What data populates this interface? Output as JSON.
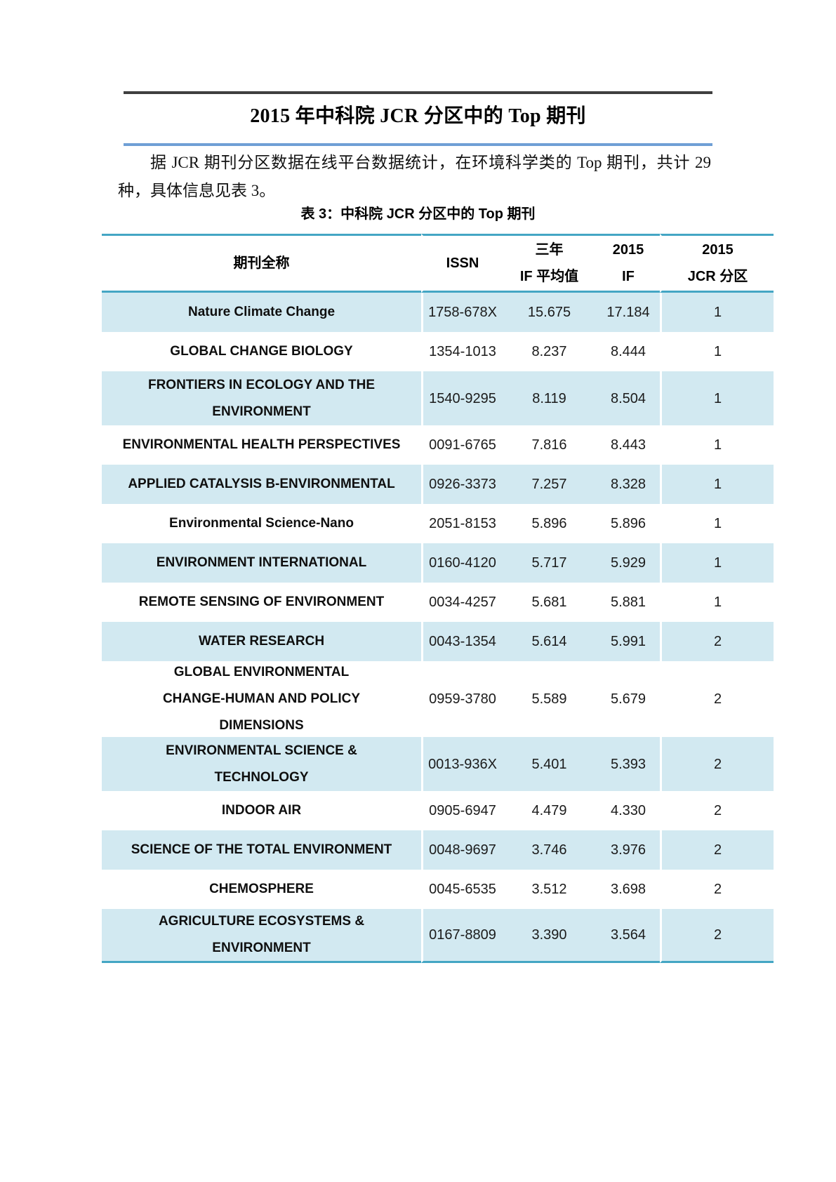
{
  "doc": {
    "title": "2015 年中科院 JCR 分区中的 Top 期刊",
    "paragraph_lines": [
      "据 JCR 期刊分区数据在线平台数据统计，在环境科学类的 Top 期刊，共计 29",
      "种，具体信息见表 3。"
    ],
    "table_caption": "表 3：中科院 JCR 分区中的 Top 期刊"
  },
  "colors": {
    "table_rule": "#44a6c4",
    "row_fill": "#d2e9f1",
    "title_rule_top": "#3f3f3f",
    "title_rule_bottom": "#6f9fd5"
  },
  "table": {
    "header": {
      "journal": "期刊全称",
      "issn": "ISSN",
      "if3_line1": "三年",
      "if3_line2": "IF 平均值",
      "if2015_line1": "2015",
      "if2015_line2": "IF",
      "zone_line1": "2015",
      "zone_line2": "JCR 分区"
    },
    "rows": [
      {
        "name_lines": [
          "Nature Climate Change"
        ],
        "issn": "1758-678X",
        "if3_avg": "15.675",
        "if_2015": "17.184",
        "jcr_zone": "1",
        "shaded": true
      },
      {
        "name_lines": [
          "GLOBAL CHANGE BIOLOGY"
        ],
        "issn": "1354-1013",
        "if3_avg": "8.237",
        "if_2015": "8.444",
        "jcr_zone": "1",
        "shaded": false
      },
      {
        "name_lines": [
          "FRONTIERS IN ECOLOGY AND THE",
          "ENVIRONMENT"
        ],
        "issn": "1540-9295",
        "if3_avg": "8.119",
        "if_2015": "8.504",
        "jcr_zone": "1",
        "shaded": true
      },
      {
        "name_lines": [
          "ENVIRONMENTAL HEALTH PERSPECTIVES"
        ],
        "issn": "0091-6765",
        "if3_avg": "7.816",
        "if_2015": "8.443",
        "jcr_zone": "1",
        "shaded": false
      },
      {
        "name_lines": [
          "APPLIED CATALYSIS B-ENVIRONMENTAL"
        ],
        "issn": "0926-3373",
        "if3_avg": "7.257",
        "if_2015": "8.328",
        "jcr_zone": "1",
        "shaded": true
      },
      {
        "name_lines": [
          "Environmental Science-Nano"
        ],
        "issn": "2051-8153",
        "if3_avg": "5.896",
        "if_2015": "5.896",
        "jcr_zone": "1",
        "shaded": false
      },
      {
        "name_lines": [
          "ENVIRONMENT INTERNATIONAL"
        ],
        "issn": "0160-4120",
        "if3_avg": "5.717",
        "if_2015": "5.929",
        "jcr_zone": "1",
        "shaded": true
      },
      {
        "name_lines": [
          "REMOTE SENSING OF ENVIRONMENT"
        ],
        "issn": "0034-4257",
        "if3_avg": "5.681",
        "if_2015": "5.881",
        "jcr_zone": "1",
        "shaded": false
      },
      {
        "name_lines": [
          "WATER RESEARCH"
        ],
        "issn": "0043-1354",
        "if3_avg": "5.614",
        "if_2015": "5.991",
        "jcr_zone": "2",
        "shaded": true
      },
      {
        "name_lines": [
          "GLOBAL ENVIRONMENTAL",
          "CHANGE-HUMAN AND POLICY",
          "DIMENSIONS"
        ],
        "issn": "0959-3780",
        "if3_avg": "5.589",
        "if_2015": "5.679",
        "jcr_zone": "2",
        "shaded": false
      },
      {
        "name_lines": [
          "ENVIRONMENTAL SCIENCE &",
          "TECHNOLOGY"
        ],
        "issn": "0013-936X",
        "if3_avg": "5.401",
        "if_2015": "5.393",
        "jcr_zone": "2",
        "shaded": true
      },
      {
        "name_lines": [
          "INDOOR AIR"
        ],
        "issn": "0905-6947",
        "if3_avg": "4.479",
        "if_2015": "4.330",
        "jcr_zone": "2",
        "shaded": false
      },
      {
        "name_lines": [
          "SCIENCE OF THE TOTAL ENVIRONMENT"
        ],
        "issn": "0048-9697",
        "if3_avg": "3.746",
        "if_2015": "3.976",
        "jcr_zone": "2",
        "shaded": true
      },
      {
        "name_lines": [
          "CHEMOSPHERE"
        ],
        "issn": "0045-6535",
        "if3_avg": "3.512",
        "if_2015": "3.698",
        "jcr_zone": "2",
        "shaded": false
      },
      {
        "name_lines": [
          "AGRICULTURE ECOSYSTEMS &",
          "ENVIRONMENT"
        ],
        "issn": "0167-8809",
        "if3_avg": "3.390",
        "if_2015": "3.564",
        "jcr_zone": "2",
        "shaded": true
      }
    ]
  }
}
